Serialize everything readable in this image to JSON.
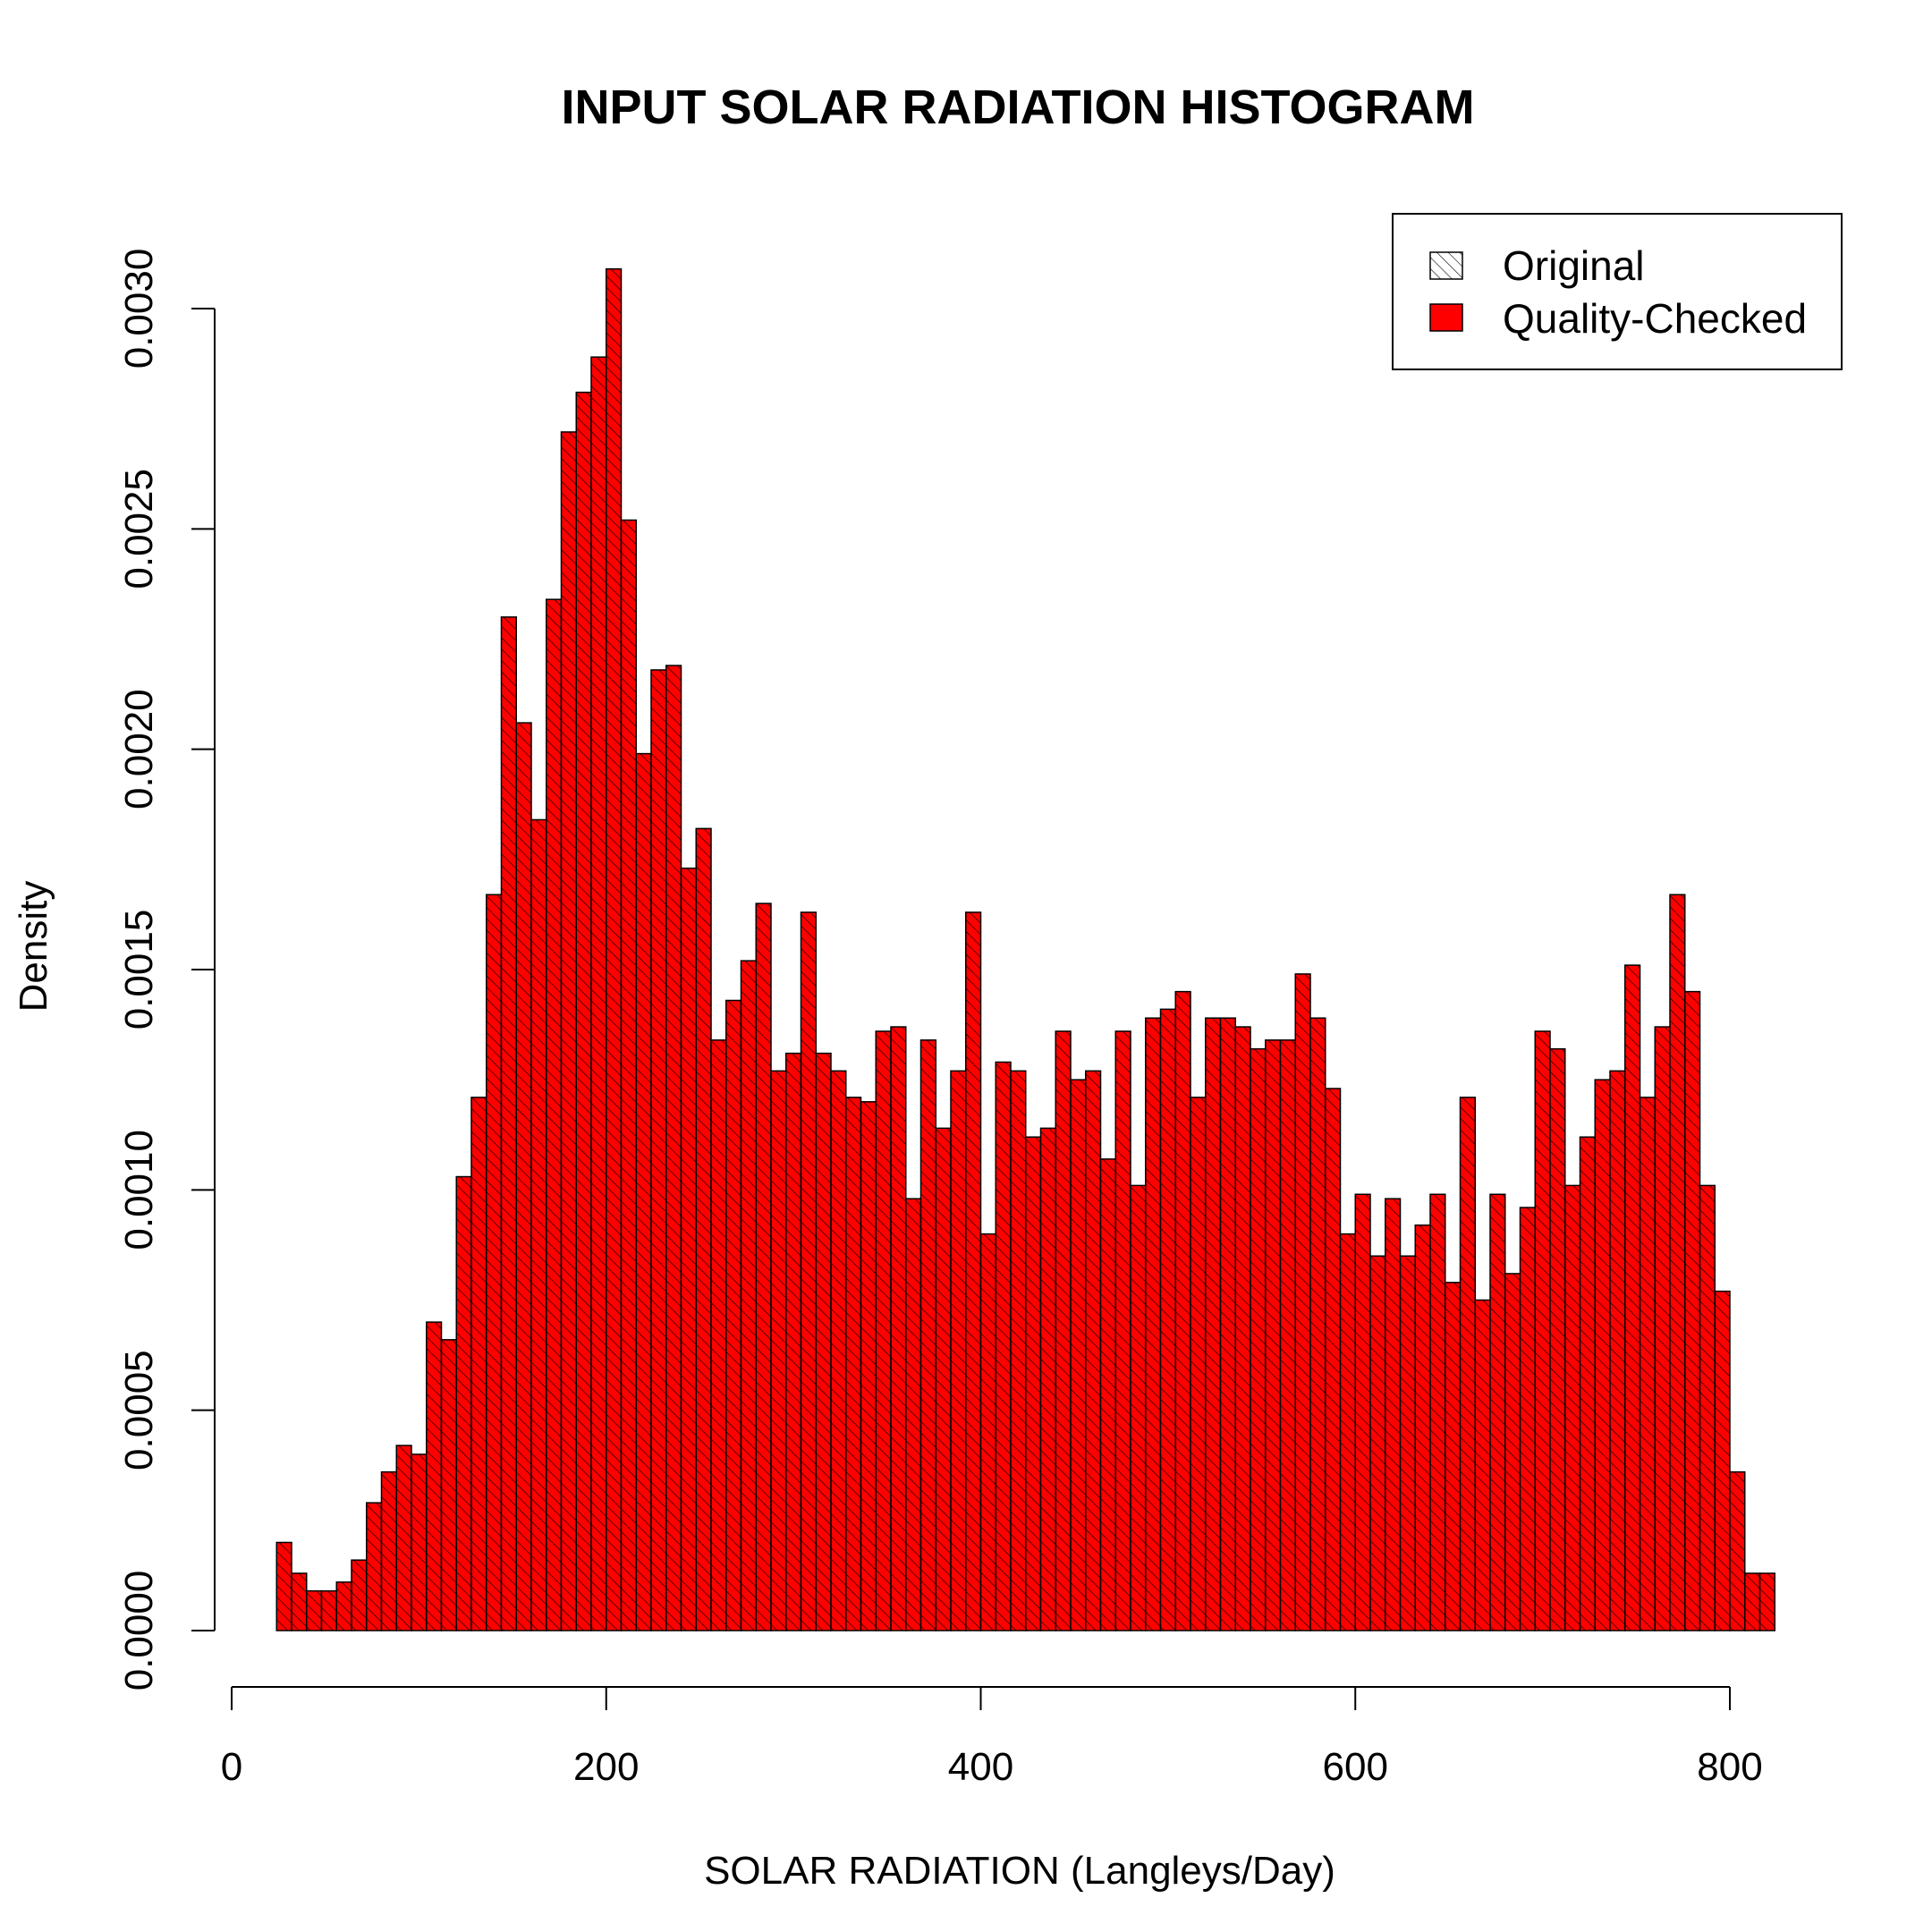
{
  "chart_data": {
    "type": "bar",
    "title": "INPUT SOLAR RADIATION HISTOGRAM",
    "xlabel": "SOLAR RADIATION (Langleys/Day)",
    "ylabel": "Density",
    "xlim": [
      0,
      800
    ],
    "ylim": [
      0,
      0.003
    ],
    "x_ticks": [
      "0",
      "200",
      "400",
      "600",
      "800"
    ],
    "y_ticks": [
      "0.0000",
      "0.0005",
      "0.0010",
      "0.0015",
      "0.0020",
      "0.0025",
      "0.0030"
    ],
    "bin_width": 8,
    "bin_start": 24,
    "fill_color": "#ff0000",
    "edge_color": "#000000",
    "hatch": "diagonal",
    "legend": {
      "position": "top-right",
      "items": [
        {
          "label": "Original",
          "style": "hatched",
          "color": "#ffffff"
        },
        {
          "label": "Quality-Checked",
          "style": "solid",
          "color": "#ff0000"
        }
      ]
    },
    "series": [
      {
        "name": "Quality-Checked",
        "values": [
          0.0002,
          0.00013,
          9e-05,
          9e-05,
          0.00011,
          0.00016,
          0.00029,
          0.00036,
          0.00042,
          0.0004,
          0.0007,
          0.00066,
          0.00103,
          0.00121,
          0.00167,
          0.0023,
          0.00206,
          0.00184,
          0.00234,
          0.00272,
          0.00281,
          0.00289,
          0.00309,
          0.00252,
          0.00199,
          0.00218,
          0.00219,
          0.00173,
          0.00182,
          0.00134,
          0.00143,
          0.00152,
          0.00165,
          0.00127,
          0.00131,
          0.00163,
          0.00131,
          0.00127,
          0.00121,
          0.0012,
          0.00136,
          0.00137,
          0.00098,
          0.00134,
          0.00114,
          0.00127,
          0.00163,
          0.0009,
          0.00129,
          0.00127,
          0.00112,
          0.00114,
          0.00136,
          0.00125,
          0.00127,
          0.00107,
          0.00136,
          0.00101,
          0.00139,
          0.00141,
          0.00145,
          0.00121,
          0.00139,
          0.00139,
          0.00137,
          0.00132,
          0.00134,
          0.00134,
          0.00149,
          0.00139,
          0.00123,
          0.0009,
          0.00099,
          0.00085,
          0.00098,
          0.00085,
          0.00092,
          0.00099,
          0.00079,
          0.00121,
          0.00075,
          0.00099,
          0.00081,
          0.00096,
          0.00136,
          0.00132,
          0.00101,
          0.00112,
          0.00125,
          0.00127,
          0.00151,
          0.00121,
          0.00137,
          0.00167,
          0.00145,
          0.00101,
          0.00077,
          0.00036,
          0.00013,
          0.00013
        ]
      }
    ]
  }
}
